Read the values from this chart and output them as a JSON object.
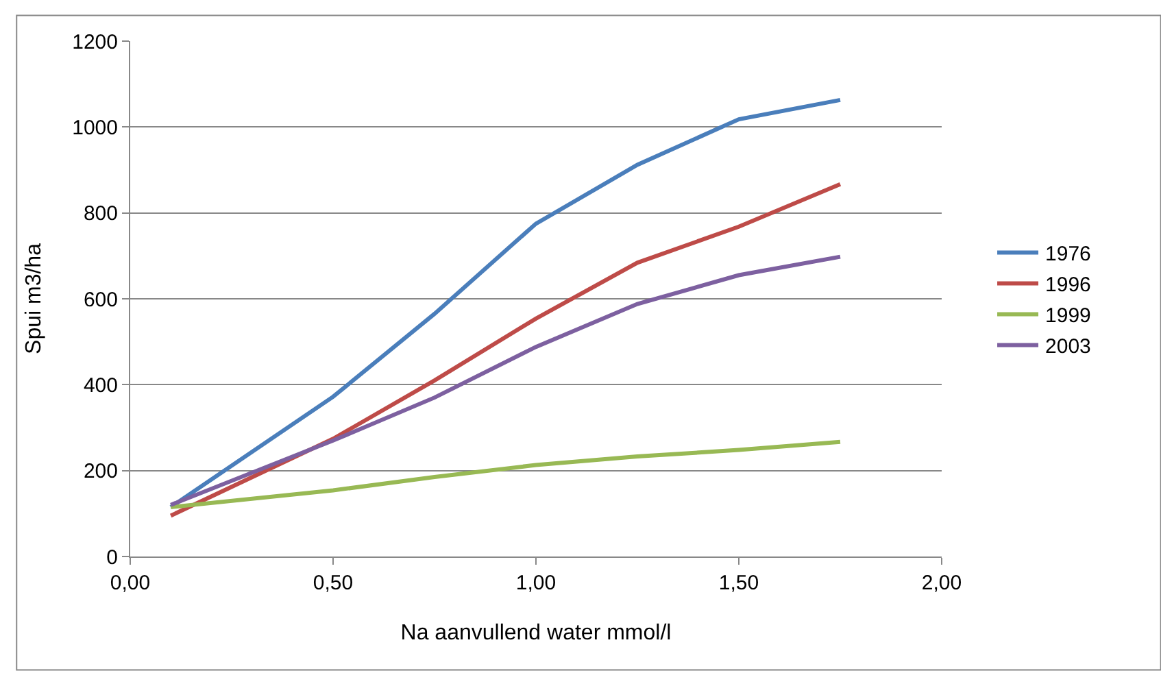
{
  "chart_data": {
    "type": "line",
    "xlabel": "Na aanvullend water mmol/l",
    "ylabel": "Spui m3/ha",
    "x": [
      0.1,
      0.5,
      0.75,
      1.0,
      1.25,
      1.5,
      1.75
    ],
    "series": [
      {
        "name": "1976",
        "color": "#4a7ebb",
        "values": [
          115,
          372,
          565,
          775,
          912,
          1018,
          1063
        ]
      },
      {
        "name": "1996",
        "color": "#be4b48",
        "values": [
          95,
          274,
          410,
          554,
          684,
          768,
          867
        ]
      },
      {
        "name": "1999",
        "color": "#98b954",
        "values": [
          115,
          154,
          185,
          213,
          233,
          248,
          267
        ]
      },
      {
        "name": "2003",
        "color": "#7d60a0",
        "values": [
          120,
          270,
          370,
          488,
          588,
          655,
          698
        ]
      }
    ],
    "xlim": [
      0,
      2
    ],
    "xticks": [
      {
        "value": 0,
        "label": "0,00"
      },
      {
        "value": 0.5,
        "label": "0,50"
      },
      {
        "value": 1,
        "label": "1,00"
      },
      {
        "value": 1.5,
        "label": "1,50"
      },
      {
        "value": 2,
        "label": "2,00"
      }
    ],
    "ylim": [
      0,
      1200
    ],
    "yticks": [
      0,
      200,
      400,
      600,
      800,
      1000,
      1200
    ],
    "grid": "y",
    "legend": "right",
    "marker": "none",
    "line_style": "solid"
  }
}
